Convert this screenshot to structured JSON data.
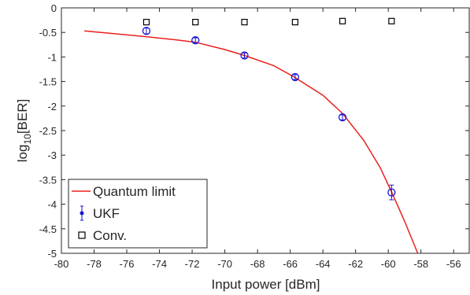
{
  "chart_data": {
    "type": "scatter",
    "xlabel": "Input power [dBm]",
    "ylabel": {
      "prefix": "log",
      "sub": "10",
      "suffix": "[BER]"
    },
    "xlim": [
      -80,
      -55
    ],
    "ylim": [
      -5,
      0
    ],
    "xticks": [
      -80,
      -78,
      -76,
      -74,
      -72,
      -70,
      -68,
      -66,
      -64,
      -62,
      -60,
      -58,
      -56
    ],
    "yticks": [
      0,
      -0.5,
      -1,
      -1.5,
      -2,
      -2.5,
      -3,
      -3.5,
      -4,
      -4.5,
      -5
    ],
    "xtick_labels": [
      "-80",
      "-78",
      "-76",
      "-74",
      "-72",
      "-70",
      "-68",
      "-66",
      "-64",
      "-62",
      "-60",
      "-58",
      "-56"
    ],
    "ytick_labels": [
      "0",
      "-0.5",
      "-1",
      "-1.5",
      "-2",
      "-2.5",
      "-3",
      "-3.5",
      "-4",
      "-4.5",
      "-5"
    ],
    "grid": false,
    "legend_position": "bottom-left",
    "series": [
      {
        "name": "Quantum limit",
        "kind": "line",
        "color": "#e8211d",
        "x": [
          -78.6,
          -77.0,
          -75.0,
          -73.0,
          -71.8,
          -70.0,
          -68.8,
          -67.0,
          -65.8,
          -64.0,
          -62.8,
          -61.5,
          -60.5,
          -59.8,
          -59.0,
          -58.2
        ],
        "y": [
          -0.47,
          -0.52,
          -0.58,
          -0.65,
          -0.7,
          -0.85,
          -0.97,
          -1.18,
          -1.4,
          -1.78,
          -2.15,
          -2.7,
          -3.25,
          -3.75,
          -4.35,
          -5.0
        ]
      },
      {
        "name": "UKF",
        "kind": "errorbar",
        "color": "#1515d4",
        "x": [
          -74.8,
          -71.8,
          -68.8,
          -65.7,
          -62.8,
          -59.8
        ],
        "y": [
          -0.47,
          -0.66,
          -0.97,
          -1.41,
          -2.23,
          -3.76
        ],
        "err": [
          0.06,
          0.05,
          0.05,
          0.05,
          0.05,
          0.15
        ]
      },
      {
        "name": "Conv.",
        "kind": "marker",
        "color": "#000000",
        "x": [
          -74.8,
          -71.8,
          -68.8,
          -65.7,
          -62.8,
          -59.8
        ],
        "y": [
          -0.29,
          -0.29,
          -0.29,
          -0.29,
          -0.27,
          -0.27
        ]
      }
    ]
  }
}
